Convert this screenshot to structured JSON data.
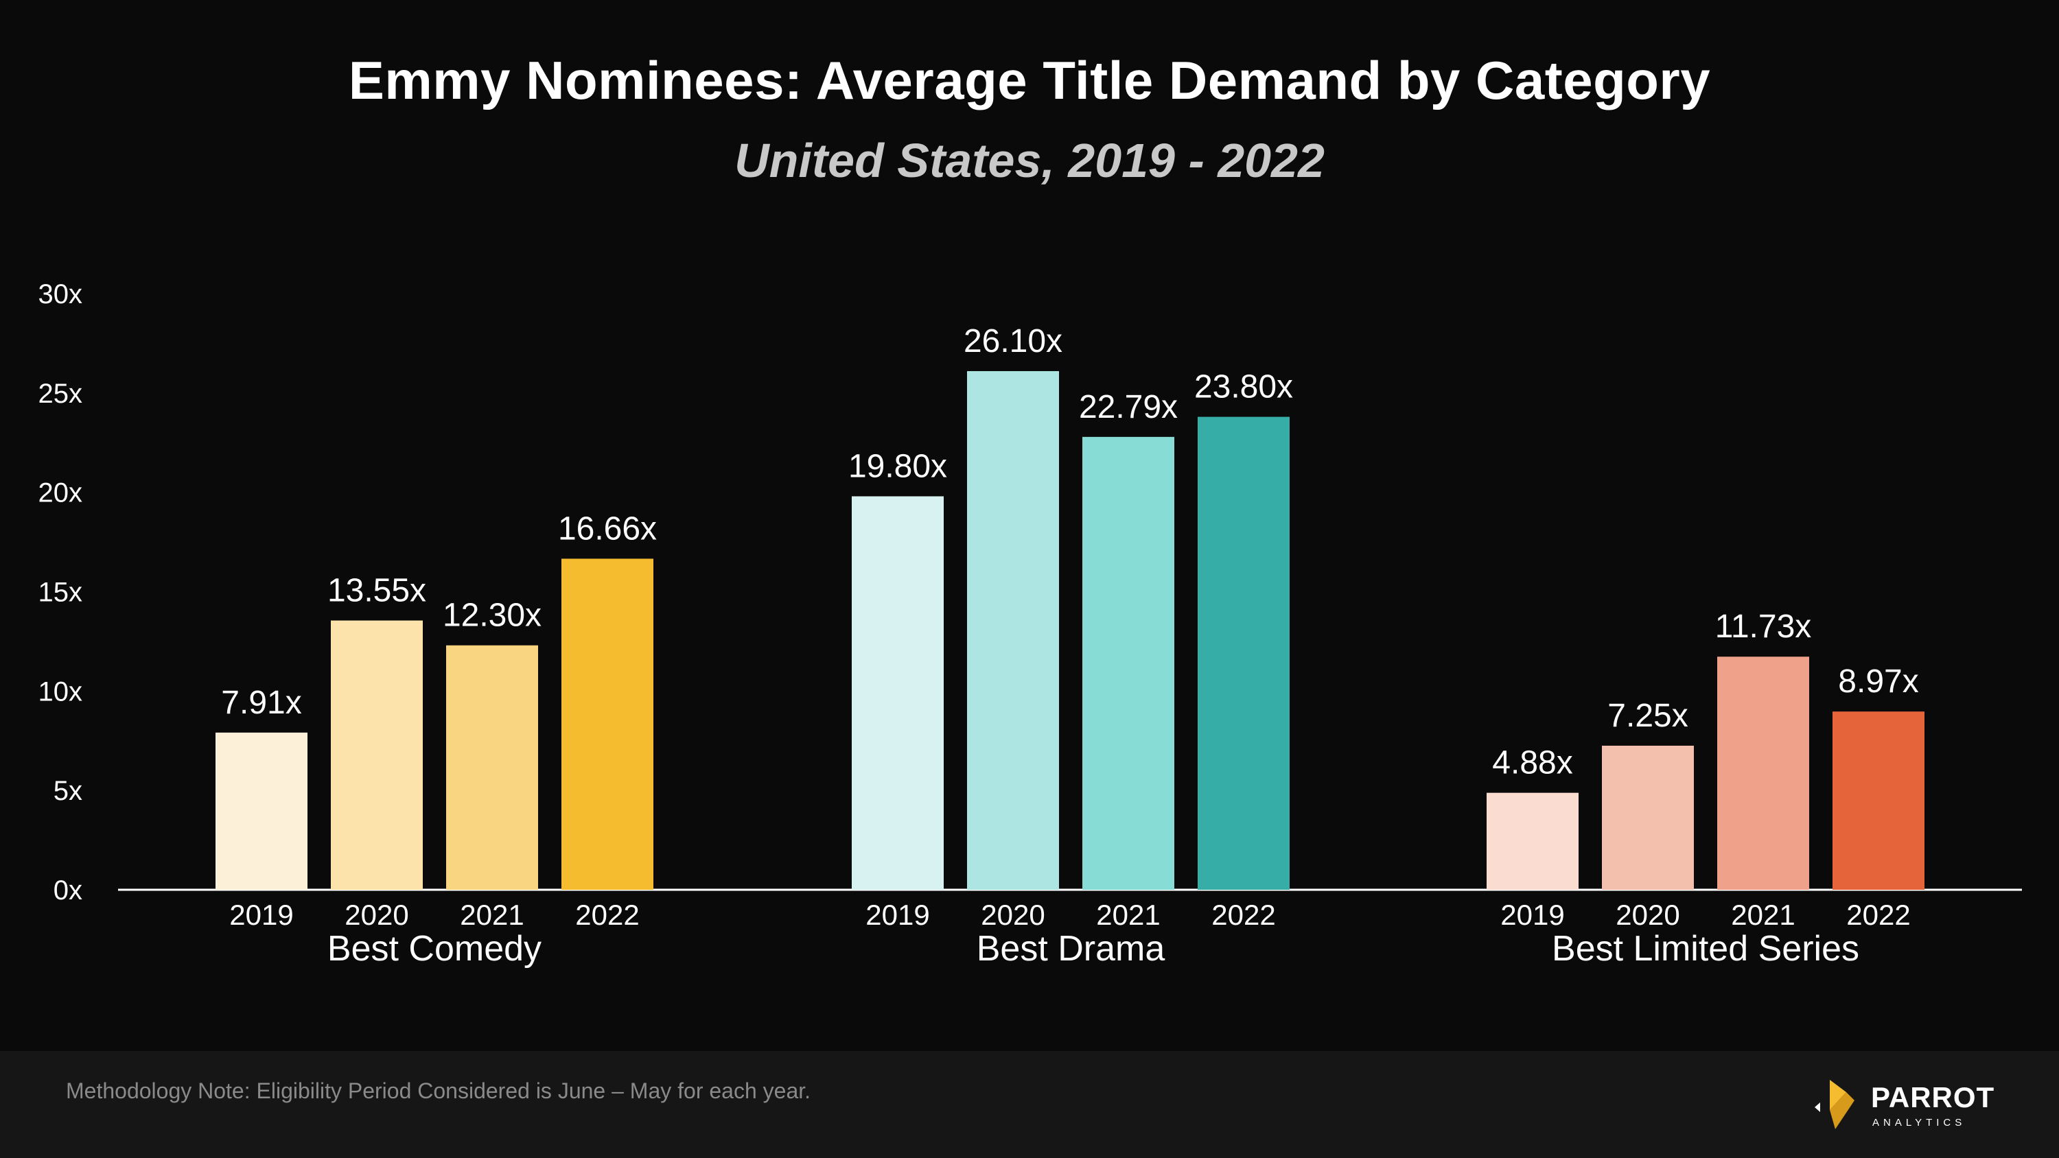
{
  "chart_data": {
    "type": "bar",
    "title": "Emmy Nominees: Average Title Demand by Category",
    "subtitle": "United States, 2019 - 2022",
    "ylim": [
      0,
      30
    ],
    "yticks": [
      "0x",
      "5x",
      "10x",
      "15x",
      "20x",
      "25x",
      "30x"
    ],
    "ytick_values": [
      0,
      5,
      10,
      15,
      20,
      25,
      30
    ],
    "grid": false,
    "groups": [
      {
        "name": "Best Comedy",
        "categories": [
          "2019",
          "2020",
          "2021",
          "2022"
        ],
        "values": [
          7.91,
          13.55,
          12.3,
          16.66
        ],
        "labels": [
          "7.91x",
          "13.55x",
          "12.30x",
          "16.66x"
        ],
        "colors": [
          "#fdf0d8",
          "#fbe3ab",
          "#f9d581",
          "#f6bc30"
        ]
      },
      {
        "name": "Best Drama",
        "categories": [
          "2019",
          "2020",
          "2021",
          "2022"
        ],
        "values": [
          19.8,
          26.1,
          22.79,
          23.8
        ],
        "labels": [
          "19.80x",
          "26.10x",
          "22.79x",
          "23.80x"
        ],
        "colors": [
          "#d8f2f1",
          "#ade5e2",
          "#87dcd6",
          "#36aea7"
        ]
      },
      {
        "name": "Best Limited Series",
        "categories": [
          "2019",
          "2020",
          "2021",
          "2022"
        ],
        "values": [
          4.88,
          7.25,
          11.73,
          8.97
        ],
        "labels": [
          "4.88x",
          "7.25x",
          "11.73x",
          "8.97x"
        ],
        "colors": [
          "#fadcd1",
          "#f3c0ad",
          "#f0a189",
          "#e5643a"
        ]
      }
    ]
  },
  "footer": {
    "note": "Methodology Note:  Eligibility Period Considered is June – May for each year.",
    "logo_name": "PARROT",
    "logo_sub": "ANALYTICS"
  },
  "colors": {
    "background": "#0a0a0a",
    "footer_background": "#161616",
    "axis": "#ffffff",
    "logo_gold": "#f6bc30"
  }
}
